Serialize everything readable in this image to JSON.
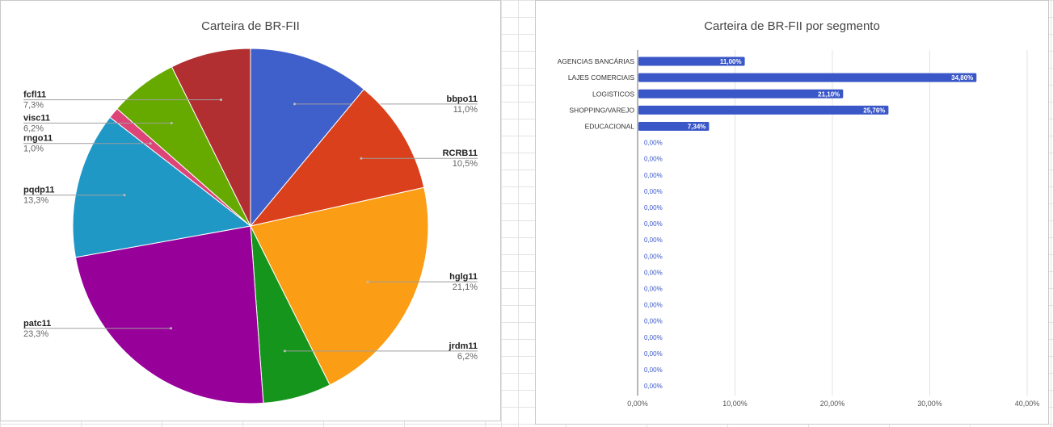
{
  "chart_data": [
    {
      "type": "pie",
      "title": "Carteira de BR-FII",
      "slices": [
        {
          "label": "bbpo11",
          "value": 11.0,
          "display": "11,0%",
          "color": "#3f5fcb"
        },
        {
          "label": "RCRB11",
          "value": 10.5,
          "display": "10,5%",
          "color": "#d9401b"
        },
        {
          "label": "hglg11",
          "value": 21.1,
          "display": "21,1%",
          "color": "#fb9e15"
        },
        {
          "label": "jrdm11",
          "value": 6.2,
          "display": "6,2%",
          "color": "#16951c"
        },
        {
          "label": "patc11",
          "value": 23.3,
          "display": "23,3%",
          "color": "#98009a"
        },
        {
          "label": "pqdp11",
          "value": 13.3,
          "display": "13,3%",
          "color": "#1f98c6"
        },
        {
          "label": "rngo11",
          "value": 1.0,
          "display": "1,0%",
          "color": "#dd4477"
        },
        {
          "label": "visc11",
          "value": 6.2,
          "display": "6,2%",
          "color": "#66aa00"
        },
        {
          "label": "fcfl11",
          "value": 7.3,
          "display": "7,3%",
          "color": "#b22f31"
        }
      ],
      "legend": "labels beside slices"
    },
    {
      "type": "bar",
      "orientation": "horizontal",
      "title": "Carteira de BR-FII por segmento",
      "categories": [
        "AGENCIAS BANCÁRIAS",
        "LAJES COMERCIAIS",
        "LOGISTICOS",
        "SHOPPING/VAREJO",
        "EDUCACIONAL",
        "",
        "",
        "",
        "",
        "",
        "",
        "",
        "",
        "",
        "",
        "",
        "",
        "",
        "",
        "",
        ""
      ],
      "values": [
        11.0,
        34.8,
        21.1,
        25.76,
        7.34,
        0,
        0,
        0,
        0,
        0,
        0,
        0,
        0,
        0,
        0,
        0,
        0,
        0,
        0,
        0,
        0
      ],
      "value_labels": [
        "11,00%",
        "34,80%",
        "21,10%",
        "25,76%",
        "7,34%",
        "0,00%",
        "0,00%",
        "0,00%",
        "0,00%",
        "0,00%",
        "0,00%",
        "0,00%",
        "0,00%",
        "0,00%",
        "0,00%",
        "0,00%",
        "0,00%",
        "0,00%",
        "0,00%",
        "0,00%",
        "0,00%"
      ],
      "xlim": [
        0,
        40
      ],
      "x_ticks": [
        0,
        10,
        20,
        30,
        40
      ],
      "x_tick_labels": [
        "0,00%",
        "10,00%",
        "20,00%",
        "30,00%",
        "40,00%"
      ],
      "bar_color": "#3a57c8",
      "grid": true,
      "xlabel": "",
      "ylabel": ""
    }
  ]
}
